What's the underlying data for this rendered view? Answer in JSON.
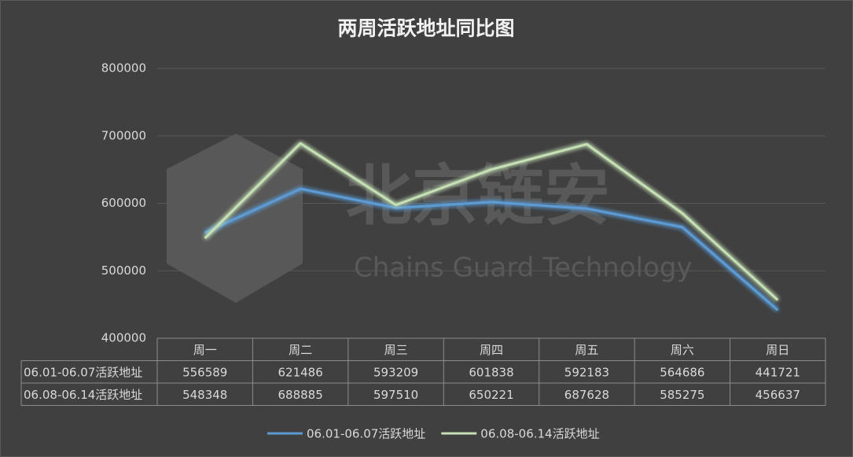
{
  "chart_data": {
    "type": "line",
    "title": "两周活跃地址同比图",
    "watermark": {
      "title": "北京链安",
      "subtitle": "Chains Guard Technology"
    },
    "categories": [
      "周一",
      "周二",
      "周三",
      "周四",
      "周五",
      "周六",
      "周日"
    ],
    "series": [
      {
        "name": "06.01-06.07活跃地址",
        "color": "#5b9bd5",
        "values": [
          556589,
          621486,
          593209,
          601838,
          592183,
          564686,
          441721
        ]
      },
      {
        "name": "06.08-06.14活跃地址",
        "color": "#c5e0b4",
        "values": [
          548348,
          688885,
          597510,
          650221,
          687628,
          585275,
          456637
        ]
      }
    ],
    "ylim": [
      400000,
      800000
    ],
    "yticks": [
      400000,
      500000,
      600000,
      700000,
      800000
    ],
    "grid": true,
    "data_table": true,
    "legend": "bottom"
  }
}
